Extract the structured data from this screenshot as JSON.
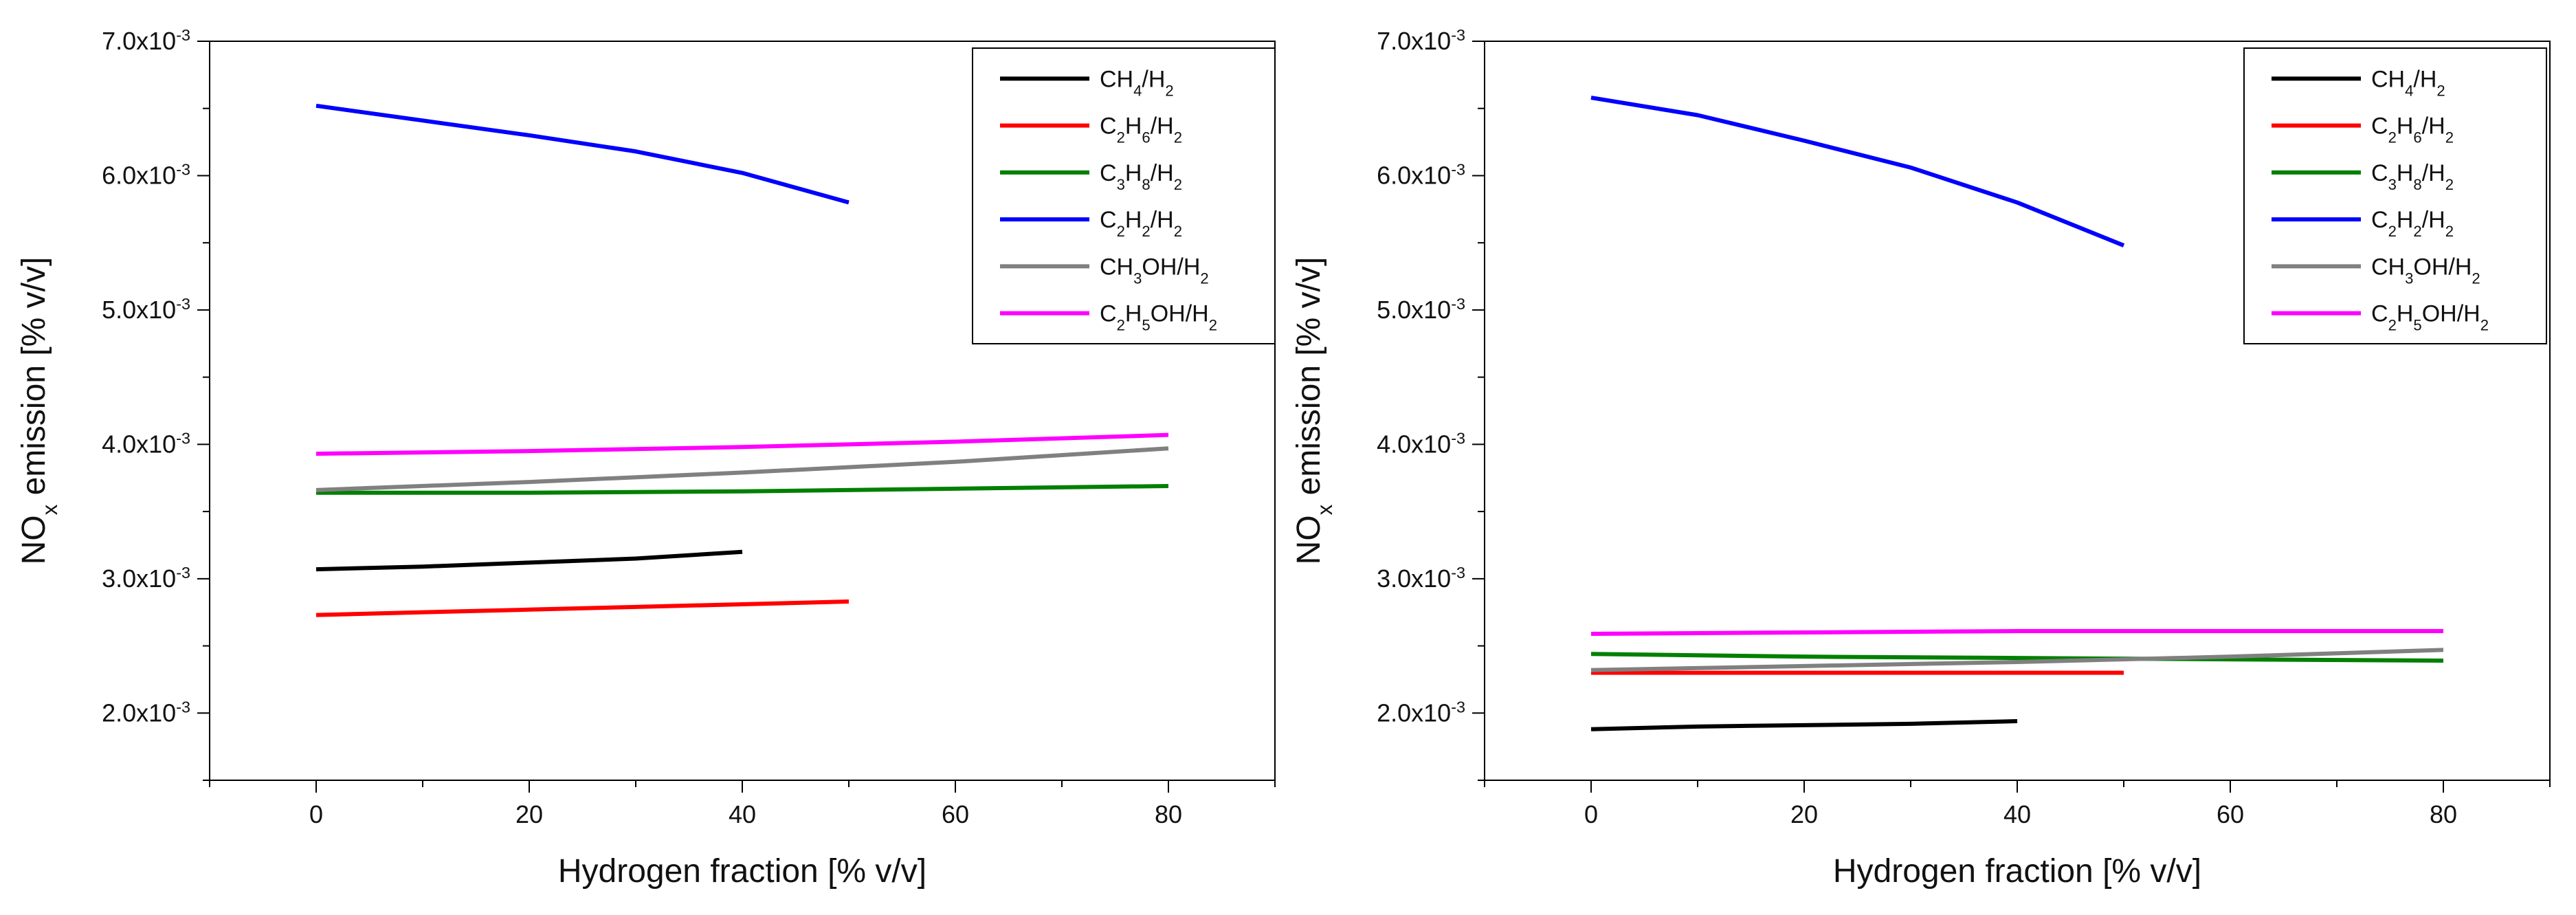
{
  "chart_data": [
    {
      "type": "line",
      "title": "",
      "xlabel": "Hydrogen fraction [% v/v]",
      "ylabel_parts": [
        "NO",
        "x",
        " emission [% v/v]"
      ],
      "xlim": [
        -10,
        90
      ],
      "ylim": [
        1.5,
        7.0
      ],
      "y_multiplier": "x10",
      "y_exponent": "-3",
      "xticks": [
        0,
        20,
        40,
        60,
        80
      ],
      "xtick_labels": [
        "0",
        "20",
        "40",
        "60",
        "80"
      ],
      "yticks": [
        2.0,
        3.0,
        4.0,
        5.0,
        6.0,
        7.0
      ],
      "ytick_labels": [
        "2.0",
        "3.0",
        "4.0",
        "5.0",
        "6.0",
        "7.0"
      ],
      "grid": false,
      "legend_position": "top-right",
      "series": [
        {
          "name": "CH4/H2",
          "label_parts": [
            [
              "CH",
              false
            ],
            [
              "4",
              true
            ],
            [
              "/H",
              false
            ],
            [
              "2",
              true
            ]
          ],
          "color": "#000000",
          "x": [
            0,
            10,
            20,
            30,
            40
          ],
          "values": [
            3.07,
            3.09,
            3.12,
            3.15,
            3.2
          ]
        },
        {
          "name": "C2H6/H2",
          "label_parts": [
            [
              "C",
              false
            ],
            [
              "2",
              true
            ],
            [
              "H",
              false
            ],
            [
              "6",
              true
            ],
            [
              "/H",
              false
            ],
            [
              "2",
              true
            ]
          ],
          "color": "#ff0000",
          "x": [
            0,
            10,
            20,
            30,
            40,
            50
          ],
          "values": [
            2.73,
            2.75,
            2.77,
            2.79,
            2.81,
            2.83
          ]
        },
        {
          "name": "C3H8/H2",
          "label_parts": [
            [
              "C",
              false
            ],
            [
              "3",
              true
            ],
            [
              "H",
              false
            ],
            [
              "8",
              true
            ],
            [
              "/H",
              false
            ],
            [
              "2",
              true
            ]
          ],
          "color": "#008000",
          "x": [
            0,
            20,
            40,
            60,
            80
          ],
          "values": [
            3.64,
            3.64,
            3.65,
            3.67,
            3.69
          ]
        },
        {
          "name": "C2H2/H2",
          "label_parts": [
            [
              "C",
              false
            ],
            [
              "2",
              true
            ],
            [
              "H",
              false
            ],
            [
              "2",
              true
            ],
            [
              "/H",
              false
            ],
            [
              "2",
              true
            ]
          ],
          "color": "#0000ff",
          "x": [
            0,
            10,
            20,
            30,
            40,
            50
          ],
          "values": [
            6.52,
            6.41,
            6.3,
            6.18,
            6.02,
            5.8
          ]
        },
        {
          "name": "CH3OH/H2",
          "label_parts": [
            [
              "CH",
              false
            ],
            [
              "3",
              true
            ],
            [
              "OH/H",
              false
            ],
            [
              "2",
              true
            ]
          ],
          "color": "#808080",
          "x": [
            0,
            20,
            40,
            60,
            80
          ],
          "values": [
            3.66,
            3.72,
            3.79,
            3.87,
            3.97
          ]
        },
        {
          "name": "C2H5OH/H2",
          "label_parts": [
            [
              "C",
              false
            ],
            [
              "2",
              true
            ],
            [
              "H",
              false
            ],
            [
              "5",
              true
            ],
            [
              "OH/H",
              false
            ],
            [
              "2",
              true
            ]
          ],
          "color": "#ff00ff",
          "x": [
            0,
            20,
            40,
            60,
            80
          ],
          "values": [
            3.93,
            3.95,
            3.98,
            4.02,
            4.07
          ]
        }
      ]
    },
    {
      "type": "line",
      "title": "",
      "xlabel": "Hydrogen fraction [% v/v]",
      "ylabel_parts": [
        "NO",
        "x",
        " emission [% v/v]"
      ],
      "xlim": [
        -10,
        90
      ],
      "ylim": [
        1.5,
        7.0
      ],
      "y_multiplier": "x10",
      "y_exponent": "-3",
      "xticks": [
        0,
        20,
        40,
        60,
        80
      ],
      "xtick_labels": [
        "0",
        "20",
        "40",
        "60",
        "80"
      ],
      "yticks": [
        2.0,
        3.0,
        4.0,
        5.0,
        6.0,
        7.0
      ],
      "ytick_labels": [
        "2.0",
        "3.0",
        "4.0",
        "5.0",
        "6.0",
        "7.0"
      ],
      "grid": false,
      "legend_position": "top-right",
      "series": [
        {
          "name": "CH4/H2",
          "label_parts": [
            [
              "CH",
              false
            ],
            [
              "4",
              true
            ],
            [
              "/H",
              false
            ],
            [
              "2",
              true
            ]
          ],
          "color": "#000000",
          "x": [
            0,
            10,
            20,
            30,
            40
          ],
          "values": [
            1.88,
            1.9,
            1.91,
            1.92,
            1.94
          ]
        },
        {
          "name": "C2H6/H2",
          "label_parts": [
            [
              "C",
              false
            ],
            [
              "2",
              true
            ],
            [
              "H",
              false
            ],
            [
              "6",
              true
            ],
            [
              "/H",
              false
            ],
            [
              "2",
              true
            ]
          ],
          "color": "#ff0000",
          "x": [
            0,
            10,
            20,
            30,
            40,
            50
          ],
          "values": [
            2.3,
            2.3,
            2.3,
            2.3,
            2.3,
            2.3
          ]
        },
        {
          "name": "C3H8/H2",
          "label_parts": [
            [
              "C",
              false
            ],
            [
              "3",
              true
            ],
            [
              "H",
              false
            ],
            [
              "8",
              true
            ],
            [
              "/H",
              false
            ],
            [
              "2",
              true
            ]
          ],
          "color": "#008000",
          "x": [
            0,
            20,
            40,
            60,
            80
          ],
          "values": [
            2.44,
            2.42,
            2.41,
            2.4,
            2.39
          ]
        },
        {
          "name": "C2H2/H2",
          "label_parts": [
            [
              "C",
              false
            ],
            [
              "2",
              true
            ],
            [
              "H",
              false
            ],
            [
              "2",
              true
            ],
            [
              "/H",
              false
            ],
            [
              "2",
              true
            ]
          ],
          "color": "#0000ff",
          "x": [
            0,
            10,
            20,
            30,
            40,
            50
          ],
          "values": [
            6.58,
            6.45,
            6.26,
            6.06,
            5.8,
            5.48
          ]
        },
        {
          "name": "CH3OH/H2",
          "label_parts": [
            [
              "CH",
              false
            ],
            [
              "3",
              true
            ],
            [
              "OH/H",
              false
            ],
            [
              "2",
              true
            ]
          ],
          "color": "#808080",
          "x": [
            0,
            20,
            40,
            60,
            80
          ],
          "values": [
            2.32,
            2.35,
            2.38,
            2.42,
            2.47
          ]
        },
        {
          "name": "C2H5OH/H2",
          "label_parts": [
            [
              "C",
              false
            ],
            [
              "2",
              true
            ],
            [
              "H",
              false
            ],
            [
              "5",
              true
            ],
            [
              "OH/H",
              false
            ],
            [
              "2",
              true
            ]
          ],
          "color": "#ff00ff",
          "x": [
            0,
            20,
            40,
            60,
            80
          ],
          "values": [
            2.59,
            2.6,
            2.61,
            2.61,
            2.61
          ]
        }
      ]
    }
  ]
}
